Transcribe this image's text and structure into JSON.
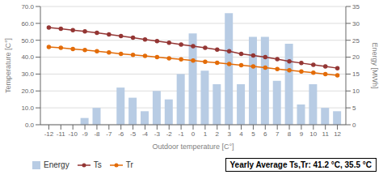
{
  "chart_data": {
    "type": "bar",
    "x": [
      -12,
      -11,
      -10,
      -9,
      -8,
      -7,
      -6,
      -5,
      -4,
      -3,
      -2,
      -1,
      0,
      1,
      2,
      3,
      4,
      5,
      6,
      7,
      8,
      9,
      10,
      11,
      12
    ],
    "xlim": [
      -12.7,
      12.7
    ],
    "xticks": [
      -12,
      -11,
      -10,
      -9,
      -8,
      -7,
      -6,
      -5,
      -4,
      -3,
      -2,
      -1,
      0,
      1,
      2,
      3,
      4,
      5,
      6,
      7,
      8,
      9,
      10,
      11,
      12
    ],
    "xlabel": "Outdoor temperature [C°]",
    "ylabel": "Temperature [C°]",
    "y2label": "Energy [MWh]",
    "ylim": [
      0.0,
      70.0
    ],
    "yticks": [
      {
        "value": 0.0,
        "label": "0.0"
      },
      {
        "value": 10.0,
        "label": "10.0"
      },
      {
        "value": 20.0,
        "label": "20.0"
      },
      {
        "value": 30.0,
        "label": "30.0"
      },
      {
        "value": 40.0,
        "label": "40.0"
      },
      {
        "value": 50.0,
        "label": "50.0"
      },
      {
        "value": 60.0,
        "label": "60.0"
      },
      {
        "value": 70.0,
        "label": "70.0"
      }
    ],
    "y2lim": [
      0,
      35
    ],
    "y2ticks": [
      0,
      5,
      10,
      15,
      20,
      25,
      30,
      35
    ],
    "grid": true,
    "legend": "lower left",
    "annotation": "Yearly Average Ts,Tr: 41.2 °C, 35.5 °C",
    "series": [
      {
        "name": "Energy",
        "type": "bar",
        "axis": "y2",
        "color": "#b8cce4",
        "values": [
          0,
          0,
          0,
          2,
          5,
          0,
          11,
          8,
          4,
          10,
          7.5,
          15,
          27,
          16,
          12,
          33,
          12,
          26,
          26,
          13,
          24,
          6,
          12,
          5,
          4
        ]
      },
      {
        "name": "Ts",
        "type": "line",
        "color": "#943634",
        "marker": "o",
        "values": [
          57.5,
          56.8,
          56.0,
          55.2,
          54.4,
          53.5,
          52.5,
          51.5,
          50.5,
          49.5,
          48.5,
          47.5,
          46.5,
          45.5,
          44.5,
          43.5,
          42.0,
          41.0,
          40.0,
          38.8,
          37.5,
          36.5,
          35.5,
          34.5,
          33.5
        ]
      },
      {
        "name": "Tr",
        "type": "line",
        "color": "#e36c09",
        "marker": "o",
        "values": [
          46.0,
          45.5,
          44.8,
          44.2,
          43.5,
          42.8,
          42.0,
          41.4,
          40.7,
          40.0,
          39.3,
          38.7,
          38.0,
          37.3,
          36.7,
          36.0,
          35.2,
          34.5,
          33.8,
          33.0,
          32.3,
          31.5,
          30.8,
          30.0,
          29.2
        ]
      }
    ]
  }
}
